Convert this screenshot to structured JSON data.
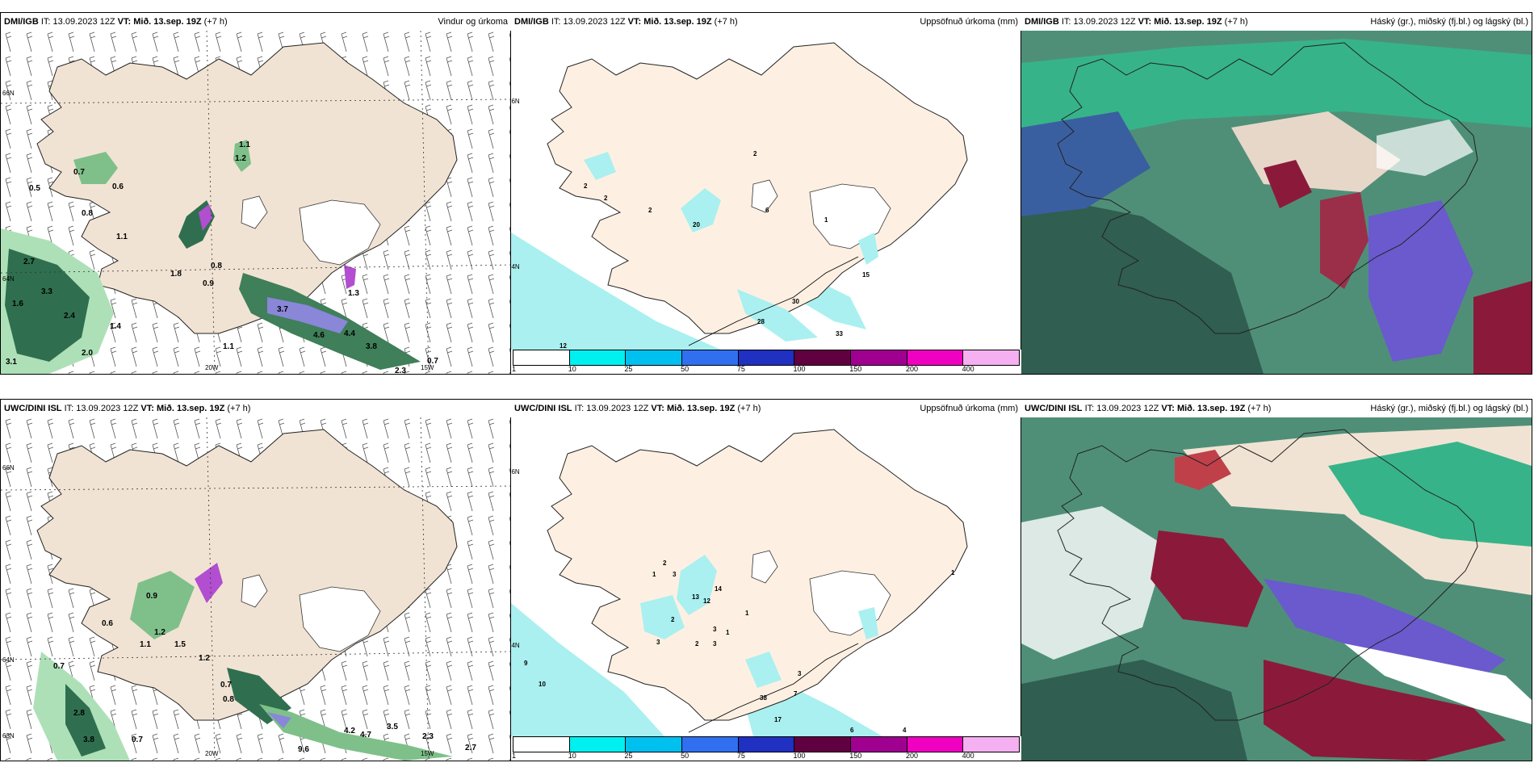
{
  "colorbar": {
    "labels": [
      "1",
      "10",
      "25",
      "50",
      "75",
      "100",
      "150",
      "200",
      "400"
    ],
    "colors": [
      "#ffffff",
      "#00f0f0",
      "#00c0f0",
      "#3070f0",
      "#2030c0",
      "#600040",
      "#a00090",
      "#f000c0",
      "#f4b0f0"
    ]
  },
  "colors": {
    "land": "#f1e3d3",
    "precip": "#aaf0f0",
    "green": "#2f6f4f",
    "purple": "#6a5acd",
    "red": "#8b1a3a"
  },
  "panels": [
    {
      "model": "DMI/IGB",
      "it_label": "IT:",
      "it_value": "13.09.2023 12Z",
      "vt_label": "VT:",
      "vt_value": "Mið. 13.sep. 19Z",
      "lead": "(+7 h)",
      "title": "Vindur og úrkoma",
      "ticks": {
        "lat1": "66N",
        "lat2": "64N",
        "lon1": "20W",
        "lon2": "15W"
      },
      "values": [
        "1.1",
        "1.2",
        "0.7",
        "0.5",
        "0.6",
        "0.8",
        "1.1",
        "0.8",
        "0.9",
        "1.8",
        "1.3",
        "2.7",
        "3.3",
        "1.6",
        "2.4",
        "1.4",
        "2.0",
        "3.1",
        "3.7",
        "4.6",
        "4.4",
        "3.8",
        "1.1",
        "0.7",
        "2.3"
      ]
    },
    {
      "model": "DMI/IGB",
      "it_label": "IT:",
      "it_value": "13.09.2023 12Z",
      "vt_label": "VT:",
      "vt_value": "Mið. 13.sep. 19Z",
      "lead": "(+7 h)",
      "title": "Uppsöfnuð úrkoma (mm)",
      "ticks": {
        "lat1": "66N",
        "lat2": "64N"
      },
      "values": [
        "2",
        "2",
        "2",
        "2",
        "20",
        "6",
        "1",
        "30",
        "33",
        "28",
        "12",
        "15"
      ]
    },
    {
      "model": "DMI/IGB",
      "it_label": "IT:",
      "it_value": "13.09.2023 12Z",
      "vt_label": "VT:",
      "vt_value": "Mið. 13.sep. 19Z",
      "lead": "(+7 h)",
      "title": "Háský (gr.), miðský (fj.bl.) og lágský (bl.)"
    },
    {
      "model": "UWC/DINI ISL",
      "it_label": "IT:",
      "it_value": "13.09.2023 12Z",
      "vt_label": "VT:",
      "vt_value": "Mið. 13.sep. 19Z",
      "lead": "(+7 h)",
      "title": "",
      "ticks": {
        "lat1": "66N",
        "lat2": "64N",
        "lat3": "63N",
        "lon1": "20W",
        "lon2": "15W"
      },
      "values": [
        "0.9",
        "0.6",
        "1.2",
        "1.1",
        "1.5",
        "0.7",
        "1.2",
        "0.7",
        "0.8",
        "2.8",
        "3.8",
        "0.7",
        "9.6",
        "4.2",
        "4.7",
        "3.5",
        "2.3",
        "2.7"
      ]
    },
    {
      "model": "UWC/DINI ISL",
      "it_label": "IT:",
      "it_value": "13.09.2023 12Z",
      "vt_label": "VT:",
      "vt_value": "Mið. 13.sep. 19Z",
      "lead": "(+7 h)",
      "title": "Uppsöfnuð úrkoma (mm)",
      "ticks": {
        "lat1": "66N",
        "lat2": "64N"
      },
      "values": [
        "2",
        "1",
        "3",
        "13",
        "14",
        "12",
        "1",
        "2",
        "3",
        "3",
        "2",
        "3",
        "1",
        "9",
        "10",
        "38",
        "17",
        "7",
        "3",
        "6",
        "4",
        "1"
      ]
    },
    {
      "model": "UWC/DINI ISL",
      "it_label": "IT:",
      "it_value": "13.09.2023 12Z",
      "vt_label": "VT:",
      "vt_value": "Mið. 13.sep. 19Z",
      "lead": "(+7 h)",
      "title": "Háský (gr.), miðský (fj.bl.) og lágský (bl.)"
    }
  ]
}
